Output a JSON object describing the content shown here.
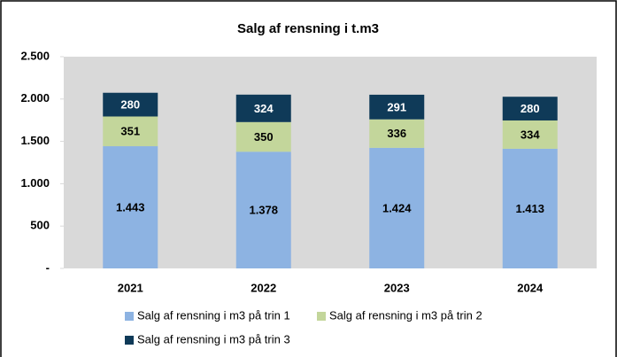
{
  "chart_data": {
    "type": "stacked_bar",
    "title": "Salg af rensning i t.m3",
    "categories": [
      "2021",
      "2022",
      "2023",
      "2024"
    ],
    "series": [
      {
        "name": "Salg af rensning i m3 på trin 1",
        "color": "#8db3e2",
        "values": [
          1443,
          1378,
          1424,
          1413
        ],
        "value_labels": [
          "1.443",
          "1.378",
          "1.424",
          "1.413"
        ]
      },
      {
        "name": "Salg af rensning i m3 på trin 2",
        "color": "#c3d69b",
        "values": [
          351,
          350,
          336,
          334
        ]
      },
      {
        "name": "Salg af rensning i m3 på trin 3",
        "color": "#0f3a58",
        "values": [
          280,
          324,
          291,
          280
        ]
      }
    ],
    "ylim": [
      0,
      2500
    ],
    "yticks": [
      {
        "value": 0,
        "label": "-"
      },
      500,
      {
        "value": 1000,
        "label": "1.000"
      },
      {
        "value": 1500,
        "label": "1.500"
      },
      {
        "value": 2000,
        "label": "2.000"
      },
      {
        "value": 2500,
        "label": "2.500"
      }
    ]
  }
}
